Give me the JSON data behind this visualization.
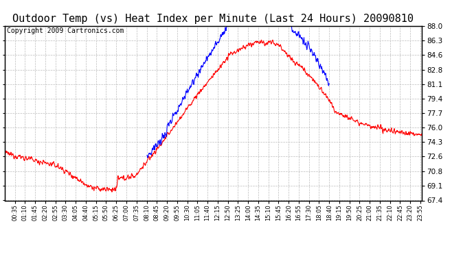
{
  "title": "Outdoor Temp (vs) Heat Index per Minute (Last 24 Hours) 20090810",
  "copyright_text": "Copyright 2009 Cartronics.com",
  "yticks": [
    67.4,
    69.1,
    70.8,
    72.6,
    74.3,
    76.0,
    77.7,
    79.4,
    81.1,
    82.8,
    84.6,
    86.3,
    88.0
  ],
  "ymin": 67.4,
  "ymax": 88.0,
  "x_labels": [
    "00:35",
    "01:10",
    "01:45",
    "02:20",
    "02:55",
    "03:30",
    "04:05",
    "04:40",
    "05:15",
    "05:50",
    "06:25",
    "07:00",
    "07:35",
    "08:10",
    "08:45",
    "09:20",
    "09:55",
    "10:30",
    "11:05",
    "11:40",
    "12:15",
    "12:50",
    "13:25",
    "14:00",
    "14:35",
    "15:10",
    "15:45",
    "16:20",
    "16:55",
    "17:30",
    "18:05",
    "18:40",
    "19:15",
    "19:50",
    "20:25",
    "21:00",
    "21:35",
    "22:10",
    "22:45",
    "23:20",
    "23:55"
  ],
  "red_line_color": "#ff0000",
  "blue_line_color": "#0000ff",
  "bg_color": "#ffffff",
  "grid_color": "#bbbbbb",
  "title_fontsize": 11,
  "copyright_fontsize": 7
}
